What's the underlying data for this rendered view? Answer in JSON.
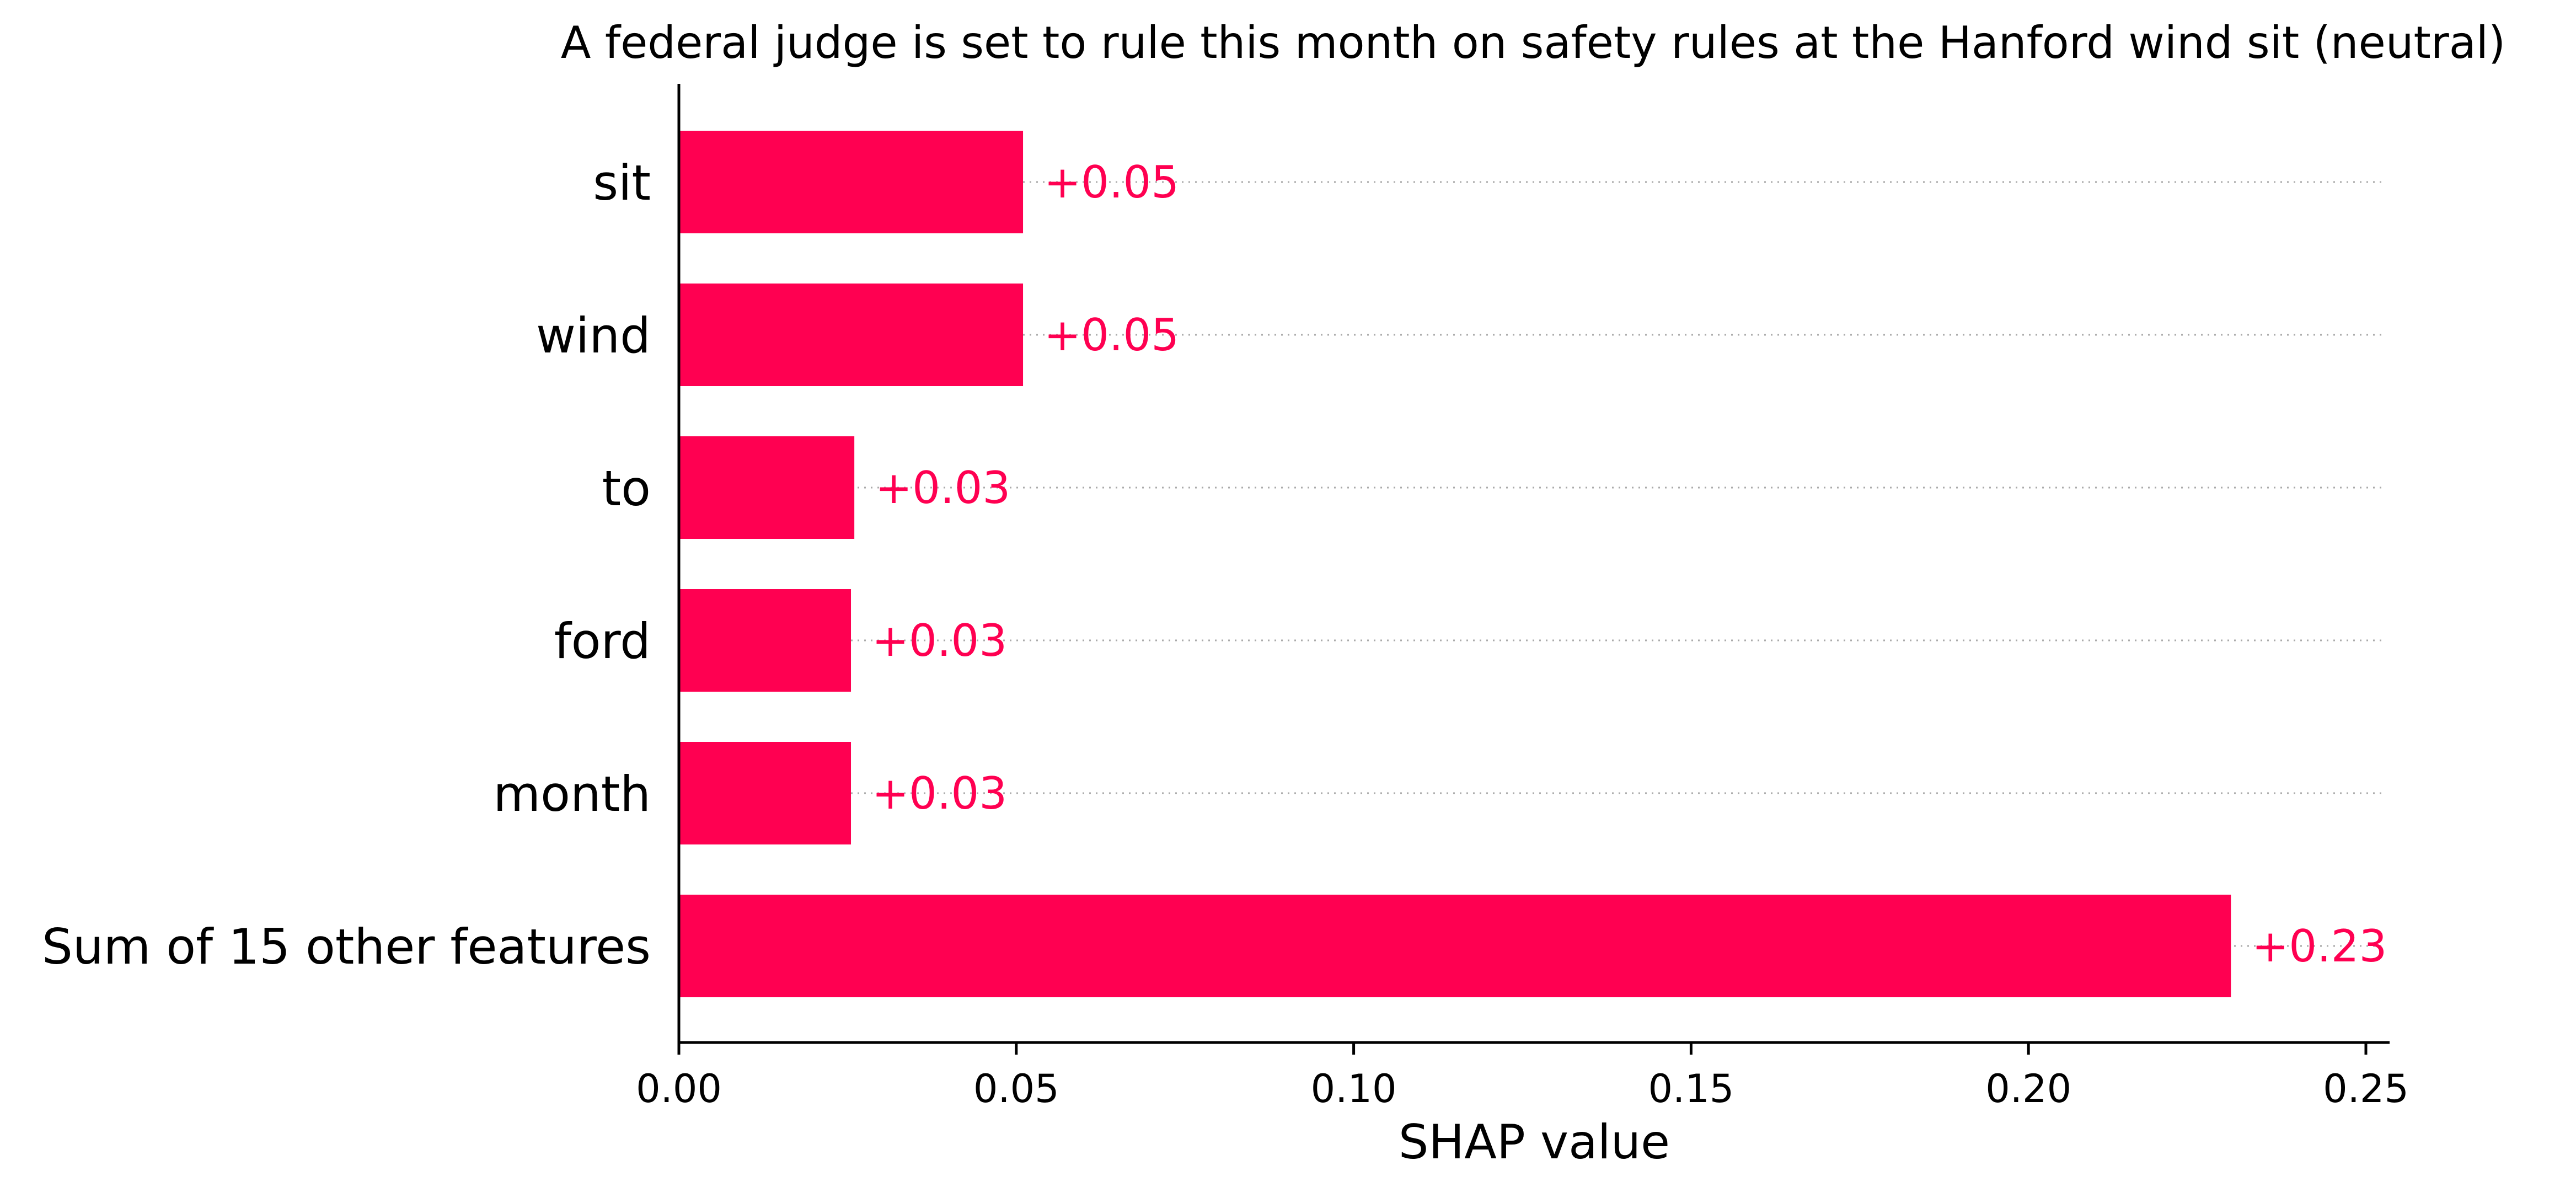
{
  "chart_data": {
    "type": "bar",
    "orientation": "horizontal",
    "title": "A federal judge is set to rule this month on safety rules at the Hanford wind sit (neutral)",
    "xlabel": "SHAP value",
    "ylabel": "",
    "xlim": [
      0,
      0.25
    ],
    "xticks": [
      0.0,
      0.05,
      0.1,
      0.15,
      0.2,
      0.25
    ],
    "xtick_labels": [
      "0.00",
      "0.05",
      "0.10",
      "0.15",
      "0.20",
      "0.25"
    ],
    "categories": [
      "sit",
      "wind",
      "to",
      "ford",
      "month",
      "Sum of 15 other features"
    ],
    "values": [
      0.051,
      0.051,
      0.026,
      0.0255,
      0.0255,
      0.23
    ],
    "value_labels": [
      "+0.05",
      "+0.05",
      "+0.03",
      "+0.03",
      "+0.03",
      "+0.23"
    ],
    "grid": "dotted row guides",
    "legend": "none",
    "colors": {
      "bar": "#ff0051",
      "value_label": "#ff0051",
      "axis": "#000000",
      "guide": "#aaaaaa",
      "text": "#000000"
    }
  }
}
